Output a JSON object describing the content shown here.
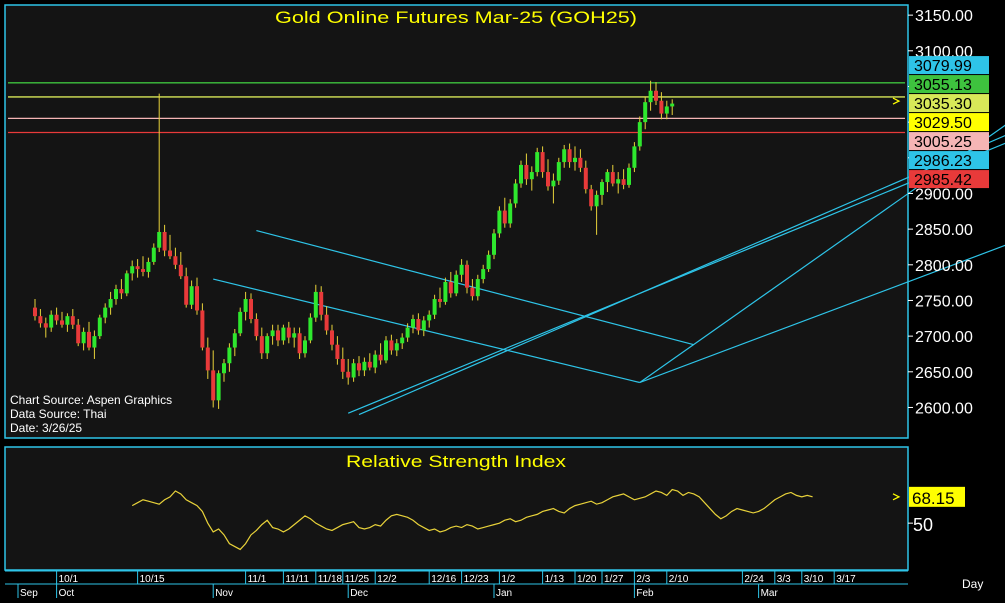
{
  "chart_data": [
    {
      "type": "candlestick",
      "title": "Gold Online Futures Mar-25 (GOH25)",
      "ylim": [
        2560,
        3160
      ],
      "yticks": [
        2600,
        2650,
        2700,
        2750,
        2800,
        2850,
        2900,
        2950,
        3000,
        3050,
        3100,
        3150
      ],
      "ytick_labels": [
        "2600.00",
        "2650.00",
        "2700.00",
        "2750.00",
        "2800.00",
        "2850.00",
        "2900.00",
        "2950.00",
        "3000.00",
        "3050.00",
        "3100.00",
        "3150.00"
      ],
      "price_tags": [
        {
          "label": "3079.99",
          "value": 3079.99,
          "color": "#2ec4e8",
          "text_color": "#000000"
        },
        {
          "label": "3055.13",
          "value": 3055.13,
          "color": "#3ec23e",
          "text_color": "#000000"
        },
        {
          "label": "3035.30",
          "value": 3035.3,
          "color": "#d8e858",
          "text_color": "#000000"
        },
        {
          "label": "3029.50",
          "value": 3029.5,
          "color": "#ffff00",
          "text_color": "#000000"
        },
        {
          "label": "3005.25",
          "value": 3005.25,
          "color": "#f5b5b5",
          "text_color": "#000000"
        },
        {
          "label": "2986.23",
          "value": 2986.23,
          "color": "#2ec4e8",
          "text_color": "#000000"
        },
        {
          "label": "2985.42",
          "value": 2985.42,
          "color": "#e83a3a",
          "text_color": "#000000"
        }
      ],
      "horizontal_lines": [
        {
          "value": 3055.13,
          "color": "#3ec23e"
        },
        {
          "value": 3035.3,
          "color": "#d8e858"
        },
        {
          "value": 3005.25,
          "color": "#f5b5b5"
        },
        {
          "value": 2985.42,
          "color": "#e83a3a"
        }
      ],
      "trend_lines": [
        {
          "from": {
            "bar": 41,
            "value": 2848
          },
          "to": {
            "bar": 122,
            "value": 2688
          }
        },
        {
          "from": {
            "bar": 33,
            "value": 2780
          },
          "to": {
            "bar": 112,
            "value": 2635
          }
        },
        {
          "from": {
            "bar": 58,
            "value": 2592
          },
          "to": {
            "bar": 186,
            "value": 2990
          }
        },
        {
          "from": {
            "bar": 112,
            "value": 2635
          },
          "to": {
            "bar": 194,
            "value": 2868
          }
        },
        {
          "from": {
            "bar": 60,
            "value": 2590
          },
          "to": {
            "bar": 190,
            "value": 3015
          }
        },
        {
          "from": {
            "bar": 112,
            "value": 2635
          },
          "to": {
            "bar": 188,
            "value": 3040
          }
        }
      ],
      "bars": [
        [
          2740,
          2752,
          2722,
          2728
        ],
        [
          2728,
          2738,
          2712,
          2718
        ],
        [
          2718,
          2726,
          2698,
          2712
        ],
        [
          2712,
          2736,
          2706,
          2730
        ],
        [
          2730,
          2740,
          2716,
          2722
        ],
        [
          2722,
          2734,
          2712,
          2716
        ],
        [
          2716,
          2732,
          2706,
          2728
        ],
        [
          2728,
          2738,
          2710,
          2716
        ],
        [
          2716,
          2724,
          2686,
          2690
        ],
        [
          2690,
          2712,
          2680,
          2706
        ],
        [
          2706,
          2720,
          2680,
          2684
        ],
        [
          2684,
          2708,
          2668,
          2700
        ],
        [
          2700,
          2730,
          2696,
          2726
        ],
        [
          2726,
          2746,
          2718,
          2740
        ],
        [
          2740,
          2762,
          2730,
          2752
        ],
        [
          2752,
          2772,
          2744,
          2766
        ],
        [
          2766,
          2780,
          2752,
          2760
        ],
        [
          2760,
          2792,
          2756,
          2788
        ],
        [
          2788,
          2806,
          2778,
          2798
        ],
        [
          2798,
          2808,
          2782,
          2794
        ],
        [
          2794,
          2812,
          2784,
          2790
        ],
        [
          2790,
          2810,
          2782,
          2804
        ],
        [
          2804,
          2830,
          2800,
          2824
        ],
        [
          2824,
          3040,
          2818,
          2846
        ],
        [
          2846,
          2856,
          2812,
          2820
        ],
        [
          2820,
          2842,
          2808,
          2812
        ],
        [
          2812,
          2824,
          2794,
          2800
        ],
        [
          2800,
          2818,
          2780,
          2784
        ],
        [
          2784,
          2796,
          2740,
          2744
        ],
        [
          2744,
          2778,
          2738,
          2770
        ],
        [
          2770,
          2782,
          2730,
          2736
        ],
        [
          2736,
          2746,
          2680,
          2684
        ],
        [
          2684,
          2698,
          2640,
          2652
        ],
        [
          2652,
          2680,
          2600,
          2610
        ],
        [
          2610,
          2652,
          2598,
          2648
        ],
        [
          2648,
          2668,
          2636,
          2662
        ],
        [
          2662,
          2690,
          2650,
          2684
        ],
        [
          2684,
          2710,
          2672,
          2704
        ],
        [
          2704,
          2740,
          2700,
          2734
        ],
        [
          2734,
          2762,
          2722,
          2752
        ],
        [
          2752,
          2760,
          2718,
          2724
        ],
        [
          2724,
          2732,
          2694,
          2700
        ],
        [
          2700,
          2712,
          2668,
          2676
        ],
        [
          2676,
          2704,
          2668,
          2700
        ],
        [
          2700,
          2716,
          2688,
          2708
        ],
        [
          2708,
          2716,
          2686,
          2694
        ],
        [
          2694,
          2716,
          2688,
          2712
        ],
        [
          2712,
          2720,
          2690,
          2698
        ],
        [
          2698,
          2712,
          2684,
          2704
        ],
        [
          2704,
          2712,
          2668,
          2676
        ],
        [
          2676,
          2700,
          2670,
          2694
        ],
        [
          2694,
          2732,
          2690,
          2726
        ],
        [
          2726,
          2772,
          2720,
          2762
        ],
        [
          2762,
          2770,
          2722,
          2730
        ],
        [
          2730,
          2742,
          2702,
          2708
        ],
        [
          2708,
          2716,
          2680,
          2688
        ],
        [
          2688,
          2700,
          2660,
          2668
        ],
        [
          2668,
          2684,
          2640,
          2650
        ],
        [
          2650,
          2668,
          2632,
          2642
        ],
        [
          2642,
          2668,
          2636,
          2662
        ],
        [
          2662,
          2672,
          2644,
          2652
        ],
        [
          2652,
          2670,
          2644,
          2664
        ],
        [
          2664,
          2676,
          2652,
          2656
        ],
        [
          2656,
          2680,
          2648,
          2674
        ],
        [
          2674,
          2690,
          2660,
          2666
        ],
        [
          2666,
          2700,
          2662,
          2694
        ],
        [
          2694,
          2702,
          2674,
          2680
        ],
        [
          2680,
          2696,
          2672,
          2690
        ],
        [
          2690,
          2704,
          2682,
          2698
        ],
        [
          2698,
          2718,
          2692,
          2712
        ],
        [
          2712,
          2730,
          2704,
          2724
        ],
        [
          2724,
          2732,
          2702,
          2708
        ],
        [
          2708,
          2728,
          2700,
          2722
        ],
        [
          2722,
          2736,
          2712,
          2730
        ],
        [
          2730,
          2758,
          2724,
          2752
        ],
        [
          2752,
          2768,
          2740,
          2748
        ],
        [
          2748,
          2782,
          2744,
          2776
        ],
        [
          2776,
          2790,
          2754,
          2760
        ],
        [
          2760,
          2792,
          2756,
          2786
        ],
        [
          2786,
          2808,
          2776,
          2800
        ],
        [
          2800,
          2806,
          2760,
          2768
        ],
        [
          2768,
          2780,
          2750,
          2756
        ],
        [
          2756,
          2786,
          2750,
          2780
        ],
        [
          2780,
          2800,
          2774,
          2794
        ],
        [
          2794,
          2820,
          2790,
          2814
        ],
        [
          2814,
          2850,
          2808,
          2844
        ],
        [
          2844,
          2882,
          2838,
          2876
        ],
        [
          2876,
          2894,
          2852,
          2858
        ],
        [
          2858,
          2892,
          2852,
          2886
        ],
        [
          2886,
          2920,
          2880,
          2914
        ],
        [
          2914,
          2946,
          2908,
          2940
        ],
        [
          2940,
          2956,
          2912,
          2920
        ],
        [
          2920,
          2938,
          2904,
          2930
        ],
        [
          2930,
          2964,
          2924,
          2958
        ],
        [
          2958,
          2966,
          2922,
          2930
        ],
        [
          2930,
          2948,
          2904,
          2910
        ],
        [
          2910,
          2928,
          2886,
          2918
        ],
        [
          2918,
          2950,
          2912,
          2944
        ],
        [
          2944,
          2968,
          2936,
          2962
        ],
        [
          2962,
          2970,
          2936,
          2944
        ],
        [
          2944,
          2966,
          2932,
          2950
        ],
        [
          2950,
          2962,
          2930,
          2936
        ],
        [
          2936,
          2946,
          2900,
          2906
        ],
        [
          2906,
          2912,
          2876,
          2882
        ],
        [
          2882,
          2904,
          2842,
          2898
        ],
        [
          2898,
          2920,
          2884,
          2916
        ],
        [
          2916,
          2934,
          2902,
          2930
        ],
        [
          2930,
          2940,
          2910,
          2914
        ],
        [
          2914,
          2930,
          2900,
          2920
        ],
        [
          2920,
          2934,
          2906,
          2912
        ],
        [
          2912,
          2942,
          2908,
          2936
        ],
        [
          2936,
          2972,
          2930,
          2966
        ],
        [
          2966,
          3008,
          2960,
          3000
        ],
        [
          3000,
          3036,
          2990,
          3028
        ],
        [
          3028,
          3058,
          3016,
          3044
        ],
        [
          3044,
          3056,
          3024,
          3030
        ],
        [
          3030,
          3042,
          3004,
          3012
        ],
        [
          3012,
          3030,
          3004,
          3022
        ],
        [
          3022,
          3032,
          3010,
          3026
        ]
      ]
    },
    {
      "type": "line",
      "title": "Relative Strength Index",
      "ylim": [
        20,
        85
      ],
      "yticks": [
        50
      ],
      "ytick_labels": [
        "50"
      ],
      "last_value_label": "68.15",
      "series": [
        {
          "color": "#e8d23a",
          "start_bar": 18,
          "values": [
            62,
            64,
            66,
            65,
            64,
            63,
            66,
            68,
            72,
            70,
            66,
            64,
            62,
            58,
            50,
            44,
            46,
            42,
            36,
            34,
            32,
            36,
            42,
            45,
            49,
            52,
            47,
            46,
            44,
            46,
            49,
            52,
            55,
            53,
            50,
            48,
            46,
            45,
            47,
            49,
            50,
            51,
            47,
            46,
            47,
            49,
            48,
            52,
            55,
            56,
            55,
            54,
            52,
            49,
            47,
            45,
            46,
            44,
            45,
            47,
            48,
            47,
            49,
            48,
            46,
            47,
            48,
            49,
            50,
            52,
            53,
            51,
            52,
            54,
            55,
            56,
            58,
            59,
            60,
            58,
            57,
            60,
            62,
            63,
            64,
            65,
            63,
            64,
            66,
            68,
            69,
            70,
            68,
            66,
            67,
            68,
            70,
            72,
            71,
            69,
            73,
            72,
            69,
            71,
            70,
            68,
            64,
            60,
            56,
            53,
            55,
            58,
            60,
            59,
            58,
            57,
            58,
            60,
            63,
            66,
            68,
            70,
            71,
            69,
            68,
            69,
            68
          ]
        }
      ]
    }
  ],
  "annotations": {
    "chart_source": "Chart Source: Aspen Graphics",
    "data_source": "Data Source: Thai",
    "date": "Date: 3/26/25"
  },
  "x_axis": {
    "day_label": "Day",
    "day_ticks": [
      {
        "bar": 4,
        "label": "10/1"
      },
      {
        "bar": 19,
        "label": "10/15"
      },
      {
        "bar": 39,
        "label": "11/1"
      },
      {
        "bar": 46,
        "label": "11/11"
      },
      {
        "bar": 52,
        "label": "11/18"
      },
      {
        "bar": 57,
        "label": "11/25"
      },
      {
        "bar": 63,
        "label": "12/2"
      },
      {
        "bar": 73,
        "label": "12/16"
      },
      {
        "bar": 79,
        "label": "12/23"
      },
      {
        "bar": 86,
        "label": "1/2"
      },
      {
        "bar": 94,
        "label": "1/13"
      },
      {
        "bar": 100,
        "label": "1/20"
      },
      {
        "bar": 105,
        "label": "1/27"
      },
      {
        "bar": 111,
        "label": "2/3"
      },
      {
        "bar": 117,
        "label": "2/10"
      },
      {
        "bar": 131,
        "label": "2/24"
      },
      {
        "bar": 137,
        "label": "3/3"
      },
      {
        "bar": 142,
        "label": "3/10"
      },
      {
        "bar": 148,
        "label": "3/17"
      }
    ],
    "month_ticks": [
      {
        "bar": 0,
        "label": "Sep"
      },
      {
        "bar": 4,
        "label": "Oct"
      },
      {
        "bar": 33,
        "label": "Nov"
      },
      {
        "bar": 58,
        "label": "Dec"
      },
      {
        "bar": 85,
        "label": "Jan"
      },
      {
        "bar": 111,
        "label": "Feb"
      },
      {
        "bar": 134,
        "label": "Mar"
      }
    ]
  },
  "colors": {
    "background": "#141414",
    "frame": "#2ec4e8",
    "up": "#2ee82e",
    "down": "#e83a3a",
    "title": "#ffff00",
    "axis_text": "#ffffff"
  }
}
